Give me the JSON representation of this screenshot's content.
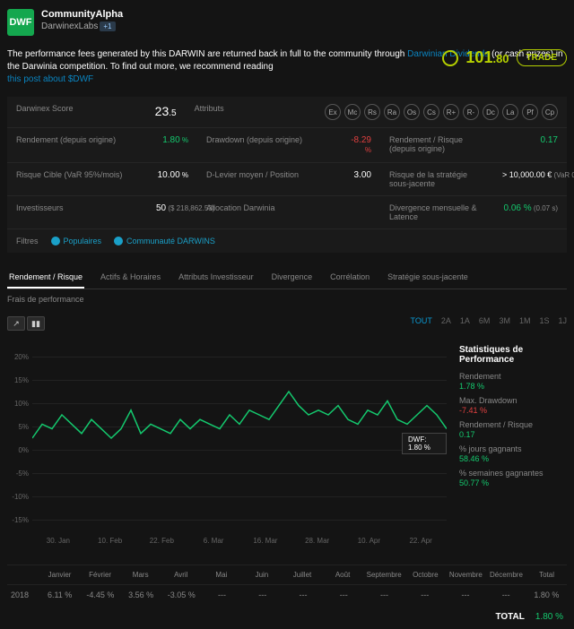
{
  "header": {
    "logo_text": "DWF",
    "title": "CommunityAlpha",
    "subtitle": "DarwinexLabs",
    "badge": "+1"
  },
  "description": {
    "line1": "The performance fees generated by this DARWIN are returned back in full to the community through",
    "link1": "Darwinian Dividends",
    "line2": " (or cash prizes) in the Darwinia competition. To find out more, we recommend reading",
    "link2": "this post about $DWF"
  },
  "price": {
    "int": "101",
    "dec": ".80",
    "button": "TRADE"
  },
  "metrics": {
    "r1c1_lbl": "Darwinex Score",
    "r1c1_val": "23",
    "r1c1_dec": ".5",
    "r1c3_lbl": "Attributs",
    "attr_icons": [
      "Ex",
      "Mc",
      "Rs",
      "Ra",
      "Os",
      "Cs",
      "R+",
      "R-",
      "Dc",
      "La",
      "Pf",
      "Cp"
    ],
    "r2c1_lbl": "Rendement (depuis origine)",
    "r2c1_val": "1.80",
    "r2c1_unit": " %",
    "r2c3_lbl": "Drawdown (depuis origine)",
    "r2c3_val": "-8.29",
    "r2c3_unit": " %",
    "r2c5_lbl": "Rendement / Risque (depuis origine)",
    "r2c5_val": "0.17",
    "r3c1_lbl": "Risque Cible (VaR 95%/mois)",
    "r3c1_val": "10.00",
    "r3c1_unit": " %",
    "r3c3_lbl": "D-Levier moyen / Position",
    "r3c3_val": "3.00",
    "r3c5_lbl": "Risque de la stratégie sous-jacente",
    "r3c5_val": "> 10,000.00 €",
    "r3c5_sub": " (VaR 0.87 %)",
    "r4c1_lbl": "Investisseurs",
    "r4c1_val": "50",
    "r4c1_sub": " ($ 218,862.53)",
    "r4c3_lbl": "Allocation Darwinia",
    "r4c5_lbl": "Divergence mensuelle & Latence",
    "r4c5_val": "0.06 %",
    "r4c5_sub": " (0.07 s)"
  },
  "filters": {
    "label": "Filtres",
    "f1": "Populaires",
    "f2": "Communauté DARWINS"
  },
  "tabs": {
    "main": [
      "Rendement / Risque",
      "Actifs & Horaires",
      "Attributs Investisseur",
      "Divergence",
      "Corrélation",
      "Stratégie sous-jacente"
    ],
    "sub": "Frais de performance",
    "ranges": [
      "TOUT",
      "2A",
      "1A",
      "6M",
      "3M",
      "1M",
      "1S",
      "1J"
    ]
  },
  "chart": {
    "yticks": [
      "20%",
      "15%",
      "10%",
      "5%",
      "0%",
      "-5%",
      "-10%",
      "-15%"
    ],
    "xticks": [
      "30. Jan",
      "10. Feb",
      "22. Feb",
      "6. Mar",
      "16. Mar",
      "28. Mar",
      "10. Apr",
      "22. Apr"
    ],
    "line_color": "#14c96e",
    "points": [
      0,
      3,
      2,
      5,
      3,
      1,
      4,
      2,
      0,
      2,
      6,
      1,
      3,
      2,
      1,
      4,
      2,
      4,
      3,
      2,
      5,
      3,
      6,
      5,
      4,
      7,
      10,
      7,
      5,
      6,
      5,
      7,
      4,
      3,
      6,
      5,
      8,
      4,
      3,
      5,
      7,
      5,
      2
    ],
    "tooltip": "DWF: 1.80 %"
  },
  "stats": {
    "title": "Statistiques de Performance",
    "s1_lbl": "Rendement",
    "s1_val": "1.78 %",
    "s1_cls": "pos",
    "s2_lbl": "Max. Drawdown",
    "s2_val": "-7.41 %",
    "s2_cls": "neg",
    "s3_lbl": "Rendement / Risque",
    "s3_val": "0.17",
    "s3_cls": "pos",
    "s4_lbl": "% jours gagnants",
    "s4_val": "58.46 %",
    "s4_cls": "pos",
    "s5_lbl": "% semaines gagnantes",
    "s5_val": "50.77 %",
    "s5_cls": "pos"
  },
  "months": {
    "headers": [
      "Janvier",
      "Février",
      "Mars",
      "Avril",
      "Mai",
      "Juin",
      "Juillet",
      "Août",
      "Septembre",
      "Octobre",
      "Novembre",
      "Décembre",
      "Total"
    ],
    "year": "2018",
    "values": [
      "6.11 %",
      "-4.45 %",
      "3.56 %",
      "-3.05 %",
      "---",
      "---",
      "---",
      "---",
      "---",
      "---",
      "---",
      "---",
      "1.80 %"
    ],
    "classes": [
      "pos",
      "neg",
      "pos",
      "neg",
      "",
      "",
      "",
      "",
      "",
      "",
      "",
      "",
      "pos"
    ],
    "total_lbl": "TOTAL",
    "total_val": "1.80 %"
  }
}
